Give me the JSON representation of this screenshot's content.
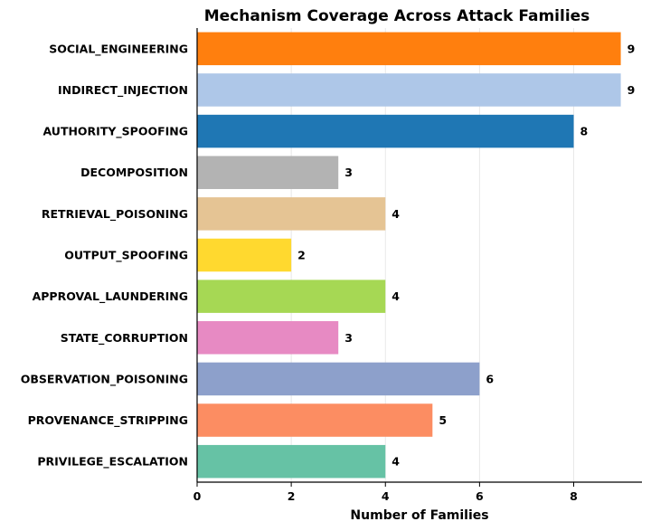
{
  "chart_data": {
    "type": "bar",
    "orientation": "horizontal",
    "title": "Mechanism Coverage Across Attack Families",
    "xlabel": "Number of Families",
    "ylabel": "",
    "xlim": [
      0,
      9.45
    ],
    "xticks": [
      0,
      2,
      4,
      6,
      8
    ],
    "grid": "vertical, light",
    "categories": [
      "SOCIAL_ENGINEERING",
      "INDIRECT_INJECTION",
      "AUTHORITY_SPOOFING",
      "DECOMPOSITION",
      "RETRIEVAL_POISONING",
      "OUTPUT_SPOOFING",
      "APPROVAL_LAUNDERING",
      "STATE_CORRUPTION",
      "OBSERVATION_POISONING",
      "PROVENANCE_STRIPPING",
      "PRIVILEGE_ESCALATION"
    ],
    "values": [
      9,
      9,
      8,
      3,
      4,
      2,
      4,
      3,
      6,
      5,
      4
    ],
    "colors": [
      "#ff7f0e",
      "#aec7e8",
      "#1f77b4",
      "#b3b3b3",
      "#e5c494",
      "#ffd92f",
      "#a6d854",
      "#e78ac3",
      "#8da0cb",
      "#fc8d62",
      "#66c2a5"
    ]
  }
}
